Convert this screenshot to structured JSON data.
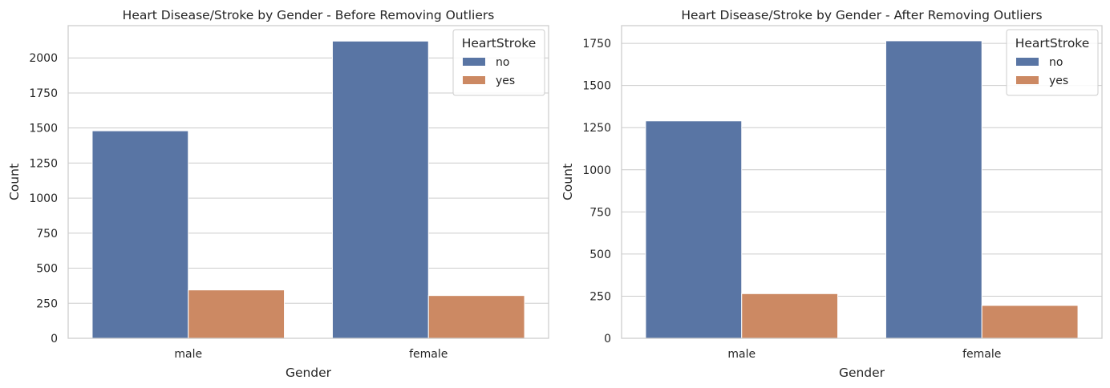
{
  "chart_data": [
    {
      "type": "bar",
      "title": "Heart Disease/Stroke by Gender - Before Removing Outliers",
      "xlabel": "Gender",
      "ylabel": "Count",
      "categories": [
        "male",
        "female"
      ],
      "series": [
        {
          "name": "no",
          "values": [
            1480,
            2120
          ]
        },
        {
          "name": "yes",
          "values": [
            345,
            305
          ]
        }
      ],
      "ylim": [
        0,
        2230
      ],
      "yticks": [
        0,
        250,
        500,
        750,
        1000,
        1250,
        1500,
        1750,
        2000
      ],
      "legend": {
        "title": "HeartStroke",
        "placement": "top-right"
      },
      "grid": "horizontal"
    },
    {
      "type": "bar",
      "title": "Heart Disease/Stroke by Gender - After Removing Outliers",
      "xlabel": "Gender",
      "ylabel": "Count",
      "categories": [
        "male",
        "female"
      ],
      "series": [
        {
          "name": "no",
          "values": [
            1290,
            1765
          ]
        },
        {
          "name": "yes",
          "values": [
            265,
            195
          ]
        }
      ],
      "ylim": [
        0,
        1855
      ],
      "yticks": [
        0,
        250,
        500,
        750,
        1000,
        1250,
        1500,
        1750
      ],
      "legend": {
        "title": "HeartStroke",
        "placement": "top-right"
      },
      "grid": "horizontal"
    }
  ],
  "colors": {
    "no": "#5975a4",
    "yes": "#cc8963",
    "grid": "#cccccc",
    "spine": "#cccccc"
  }
}
